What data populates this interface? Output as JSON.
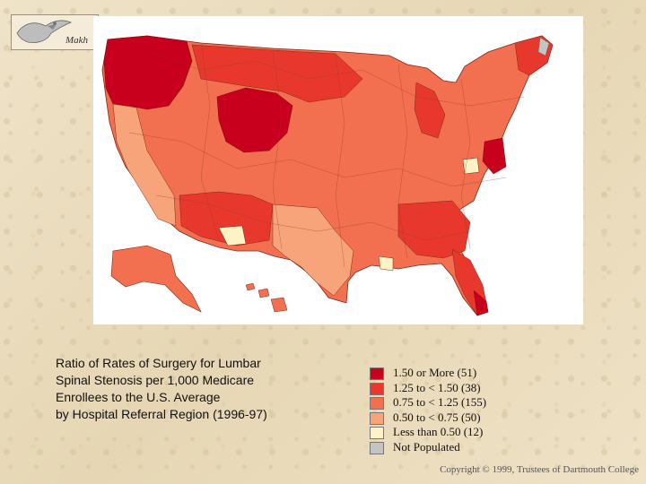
{
  "logo": {
    "text": "Makh"
  },
  "caption": {
    "line1": "Ratio of Rates of Surgery for Lumbar",
    "line2": "Spinal Stenosis per 1,000 Medicare",
    "line3": "Enrollees to the U.S. Average",
    "line4": "by Hospital Referral Region (1996-97)"
  },
  "legend": {
    "items": [
      {
        "label": "1.50 or More (51)",
        "color": "#c8001e"
      },
      {
        "label": "1.25 to < 1.50 (38)",
        "color": "#e8382e"
      },
      {
        "label": "0.75 to < 1.25 (155)",
        "color": "#f2704f"
      },
      {
        "label": "0.50 to < 0.75 (50)",
        "color": "#f8a47a"
      },
      {
        "label": "Less than 0.50 (12)",
        "color": "#fdf3c6"
      },
      {
        "label": "Not Populated",
        "color": "#c4c4c4"
      }
    ]
  },
  "copyright": "Copyright © 1999, Trustees of Dartmouth College"
}
